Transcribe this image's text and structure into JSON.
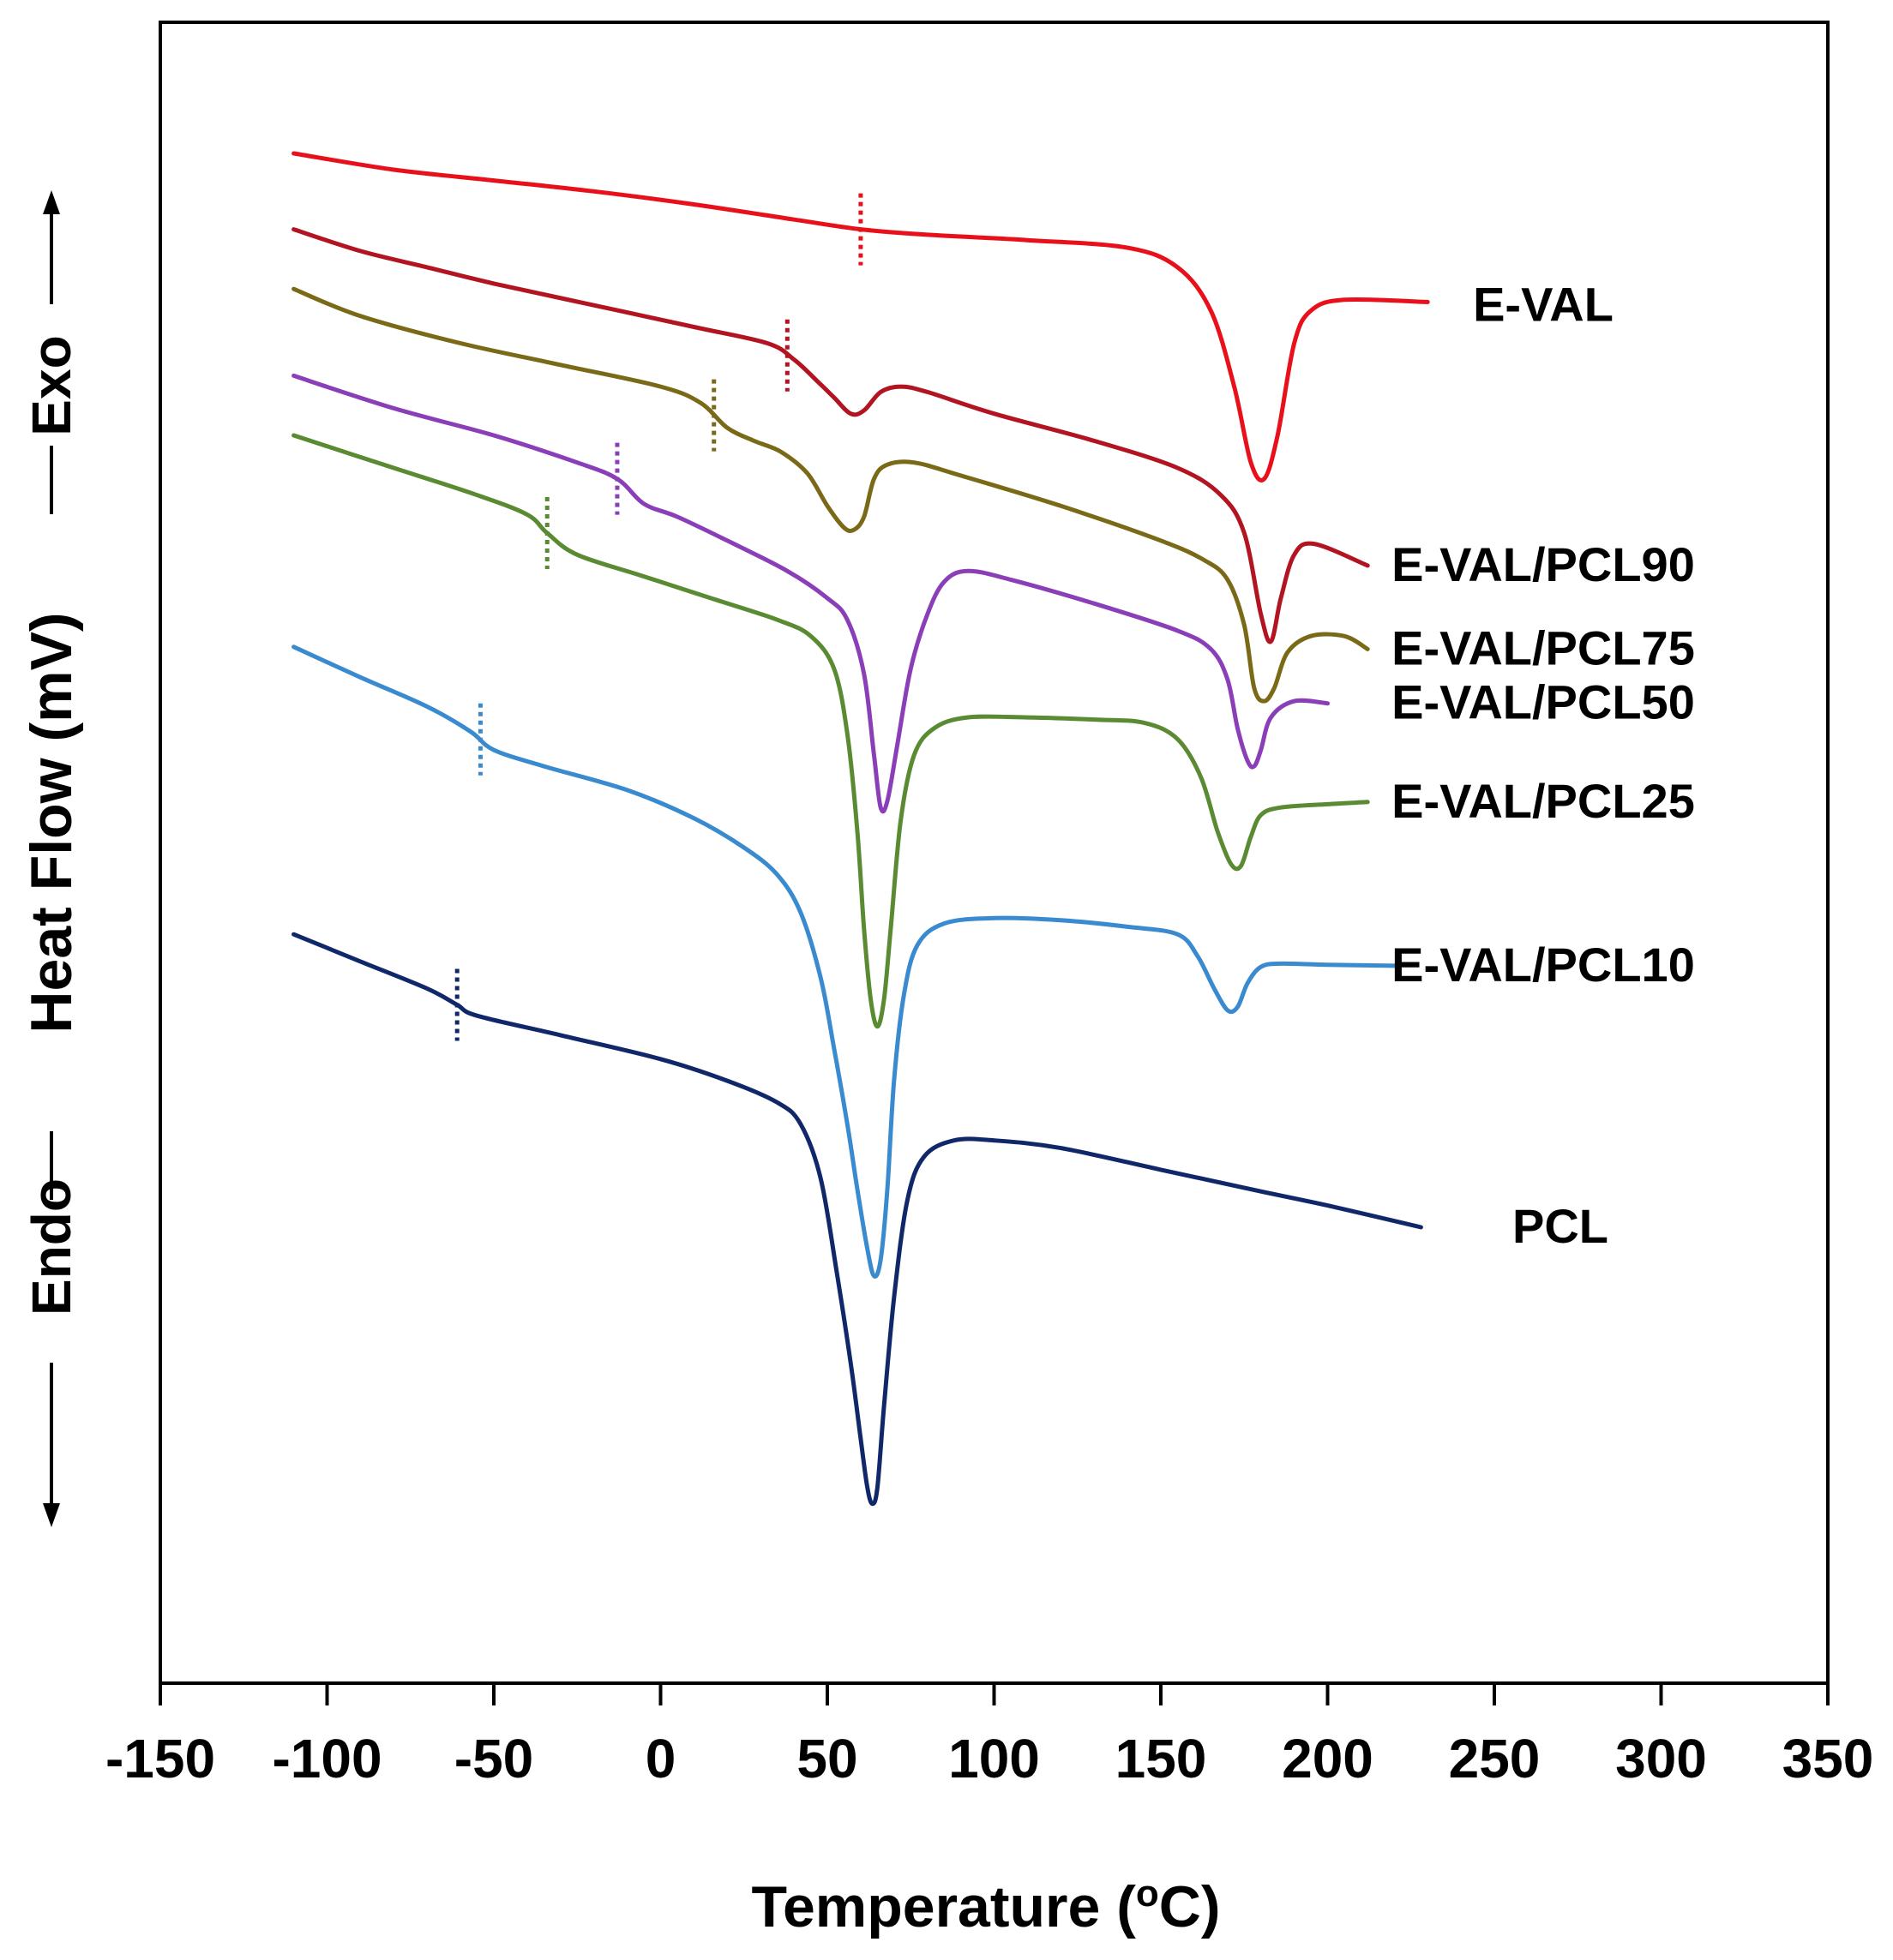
{
  "chart_data": {
    "type": "line",
    "xlabel_main": "Temperature (",
    "xlabel_sup": "o",
    "xlabel_end": "C)",
    "ylabel": "Heat Flow (mV)",
    "exo_label": "Exo",
    "endo_label": "Endo",
    "xlim": [
      -150,
      350
    ],
    "x_ticks": [
      -150,
      -100,
      -50,
      0,
      50,
      100,
      150,
      200,
      250,
      300,
      350
    ],
    "x_tick_labels": [
      "-150",
      "-100",
      "-50",
      "0",
      "50",
      "100",
      "150",
      "200",
      "250",
      "300",
      "350"
    ],
    "yticks_shown": false,
    "series": [
      {
        "name": "E-VAL",
        "color": "#e8101a",
        "tg": 60,
        "points": [
          [
            -110,
            5.35
          ],
          [
            -80,
            5.2
          ],
          [
            -50,
            5.1
          ],
          [
            -20,
            5.0
          ],
          [
            10,
            4.88
          ],
          [
            40,
            4.74
          ],
          [
            60,
            4.65
          ],
          [
            80,
            4.6
          ],
          [
            110,
            4.55
          ],
          [
            140,
            4.48
          ],
          [
            155,
            4.3
          ],
          [
            165,
            3.9
          ],
          [
            172,
            3.2
          ],
          [
            177,
            2.5
          ],
          [
            181,
            2.35
          ],
          [
            185,
            2.75
          ],
          [
            190,
            3.6
          ],
          [
            195,
            3.9
          ],
          [
            205,
            4.0
          ],
          [
            230,
            3.98
          ]
        ]
      },
      {
        "name": "E-VAL/PCL90",
        "color": "#b21422",
        "tg": 38,
        "points": [
          [
            -110,
            4.65
          ],
          [
            -90,
            4.45
          ],
          [
            -70,
            4.3
          ],
          [
            -50,
            4.15
          ],
          [
            -20,
            3.95
          ],
          [
            10,
            3.75
          ],
          [
            32,
            3.6
          ],
          [
            40,
            3.45
          ],
          [
            47,
            3.25
          ],
          [
            52,
            3.1
          ],
          [
            57,
            2.95
          ],
          [
            61,
            2.98
          ],
          [
            66,
            3.15
          ],
          [
            72,
            3.2
          ],
          [
            80,
            3.15
          ],
          [
            100,
            2.95
          ],
          [
            130,
            2.7
          ],
          [
            155,
            2.45
          ],
          [
            168,
            2.2
          ],
          [
            175,
            1.85
          ],
          [
            180,
            1.1
          ],
          [
            183,
            0.85
          ],
          [
            186,
            1.25
          ],
          [
            190,
            1.65
          ],
          [
            196,
            1.75
          ],
          [
            212,
            1.55
          ]
        ]
      },
      {
        "name": "E-VAL/PCL75",
        "color": "#7a6a18",
        "tg": 16,
        "points": [
          [
            -110,
            4.1
          ],
          [
            -90,
            3.85
          ],
          [
            -60,
            3.6
          ],
          [
            -30,
            3.4
          ],
          [
            0,
            3.2
          ],
          [
            12,
            3.05
          ],
          [
            20,
            2.82
          ],
          [
            28,
            2.7
          ],
          [
            36,
            2.6
          ],
          [
            44,
            2.4
          ],
          [
            50,
            2.1
          ],
          [
            55,
            1.9
          ],
          [
            58,
            1.88
          ],
          [
            61,
            2.0
          ],
          [
            64,
            2.35
          ],
          [
            68,
            2.48
          ],
          [
            76,
            2.5
          ],
          [
            90,
            2.38
          ],
          [
            120,
            2.1
          ],
          [
            150,
            1.78
          ],
          [
            163,
            1.6
          ],
          [
            170,
            1.42
          ],
          [
            175,
            1.0
          ],
          [
            178,
            0.42
          ],
          [
            181,
            0.3
          ],
          [
            184,
            0.42
          ],
          [
            188,
            0.75
          ],
          [
            195,
            0.9
          ],
          [
            205,
            0.9
          ],
          [
            212,
            0.78
          ]
        ]
      },
      {
        "name": "E-VAL/PCL50",
        "color": "#8a3fb8",
        "tg": -13,
        "points": [
          [
            -110,
            3.3
          ],
          [
            -80,
            3.0
          ],
          [
            -50,
            2.75
          ],
          [
            -25,
            2.5
          ],
          [
            -13,
            2.35
          ],
          [
            -5,
            2.12
          ],
          [
            5,
            2.0
          ],
          [
            20,
            1.78
          ],
          [
            38,
            1.5
          ],
          [
            50,
            1.25
          ],
          [
            56,
            1.05
          ],
          [
            61,
            0.55
          ],
          [
            64,
            -0.2
          ],
          [
            66,
            -0.68
          ],
          [
            68,
            -0.62
          ],
          [
            71,
            -0.1
          ],
          [
            75,
            0.6
          ],
          [
            80,
            1.1
          ],
          [
            85,
            1.4
          ],
          [
            92,
            1.5
          ],
          [
            105,
            1.42
          ],
          [
            130,
            1.2
          ],
          [
            155,
            0.95
          ],
          [
            165,
            0.78
          ],
          [
            170,
            0.5
          ],
          [
            173,
            0.05
          ],
          [
            176,
            -0.25
          ],
          [
            178,
            -0.3
          ],
          [
            180,
            -0.15
          ],
          [
            183,
            0.15
          ],
          [
            190,
            0.3
          ],
          [
            200,
            0.28
          ]
        ]
      },
      {
        "name": "E-VAL/PCL25",
        "color": "#5a8a32",
        "tg": -34,
        "points": [
          [
            -110,
            2.75
          ],
          [
            -80,
            2.45
          ],
          [
            -55,
            2.2
          ],
          [
            -40,
            2.02
          ],
          [
            -34,
            1.85
          ],
          [
            -25,
            1.65
          ],
          [
            -5,
            1.45
          ],
          [
            15,
            1.25
          ],
          [
            35,
            1.05
          ],
          [
            45,
            0.9
          ],
          [
            52,
            0.6
          ],
          [
            56,
            0.0
          ],
          [
            59,
            -0.9
          ],
          [
            61,
            -1.8
          ],
          [
            63,
            -2.45
          ],
          [
            65,
            -2.7
          ],
          [
            67,
            -2.45
          ],
          [
            69,
            -1.8
          ],
          [
            72,
            -0.8
          ],
          [
            76,
            -0.2
          ],
          [
            82,
            0.05
          ],
          [
            92,
            0.15
          ],
          [
            110,
            0.15
          ],
          [
            130,
            0.13
          ],
          [
            145,
            0.1
          ],
          [
            155,
            -0.05
          ],
          [
            162,
            -0.4
          ],
          [
            167,
            -0.9
          ],
          [
            171,
            -1.2
          ],
          [
            174,
            -1.22
          ],
          [
            177,
            -0.95
          ],
          [
            180,
            -0.75
          ],
          [
            186,
            -0.68
          ],
          [
            200,
            -0.65
          ],
          [
            212,
            -0.63
          ]
        ]
      },
      {
        "name": "E-VAL/PCL10",
        "color": "#3a8ad0",
        "tg": -54,
        "points": [
          [
            -110,
            0.8
          ],
          [
            -90,
            0.52
          ],
          [
            -70,
            0.25
          ],
          [
            -57,
            0.02
          ],
          [
            -50,
            -0.15
          ],
          [
            -35,
            -0.3
          ],
          [
            -10,
            -0.52
          ],
          [
            10,
            -0.78
          ],
          [
            25,
            -1.05
          ],
          [
            35,
            -1.3
          ],
          [
            42,
            -1.65
          ],
          [
            48,
            -2.25
          ],
          [
            52,
            -2.9
          ],
          [
            56,
            -3.6
          ],
          [
            59,
            -4.2
          ],
          [
            62,
            -4.75
          ],
          [
            64,
            -5.0
          ],
          [
            66,
            -4.85
          ],
          [
            68,
            -4.2
          ],
          [
            70,
            -3.2
          ],
          [
            73,
            -2.4
          ],
          [
            77,
            -1.95
          ],
          [
            85,
            -1.75
          ],
          [
            100,
            -1.7
          ],
          [
            120,
            -1.72
          ],
          [
            140,
            -1.78
          ],
          [
            155,
            -1.85
          ],
          [
            161,
            -2.05
          ],
          [
            166,
            -2.35
          ],
          [
            170,
            -2.55
          ],
          [
            173,
            -2.52
          ],
          [
            176,
            -2.3
          ],
          [
            180,
            -2.15
          ],
          [
            186,
            -2.12
          ],
          [
            200,
            -2.13
          ],
          [
            220,
            -2.14
          ]
        ]
      },
      {
        "name": "PCL",
        "color": "#10276a",
        "tg": -61,
        "points": [
          [
            -110,
            -1.85
          ],
          [
            -90,
            -2.1
          ],
          [
            -70,
            -2.35
          ],
          [
            -61,
            -2.5
          ],
          [
            -55,
            -2.6
          ],
          [
            -30,
            -2.78
          ],
          [
            0,
            -3.0
          ],
          [
            20,
            -3.2
          ],
          [
            35,
            -3.4
          ],
          [
            42,
            -3.6
          ],
          [
            48,
            -4.1
          ],
          [
            53,
            -5.0
          ],
          [
            57,
            -5.8
          ],
          [
            60,
            -6.5
          ],
          [
            62,
            -6.95
          ],
          [
            63.5,
            -7.1
          ],
          [
            65,
            -6.95
          ],
          [
            67,
            -6.2
          ],
          [
            70,
            -5.2
          ],
          [
            74,
            -4.3
          ],
          [
            79,
            -3.9
          ],
          [
            88,
            -3.75
          ],
          [
            100,
            -3.75
          ],
          [
            120,
            -3.82
          ],
          [
            150,
            -4.02
          ],
          [
            180,
            -4.22
          ],
          [
            200,
            -4.35
          ],
          [
            228,
            -4.55
          ]
        ]
      }
    ]
  }
}
